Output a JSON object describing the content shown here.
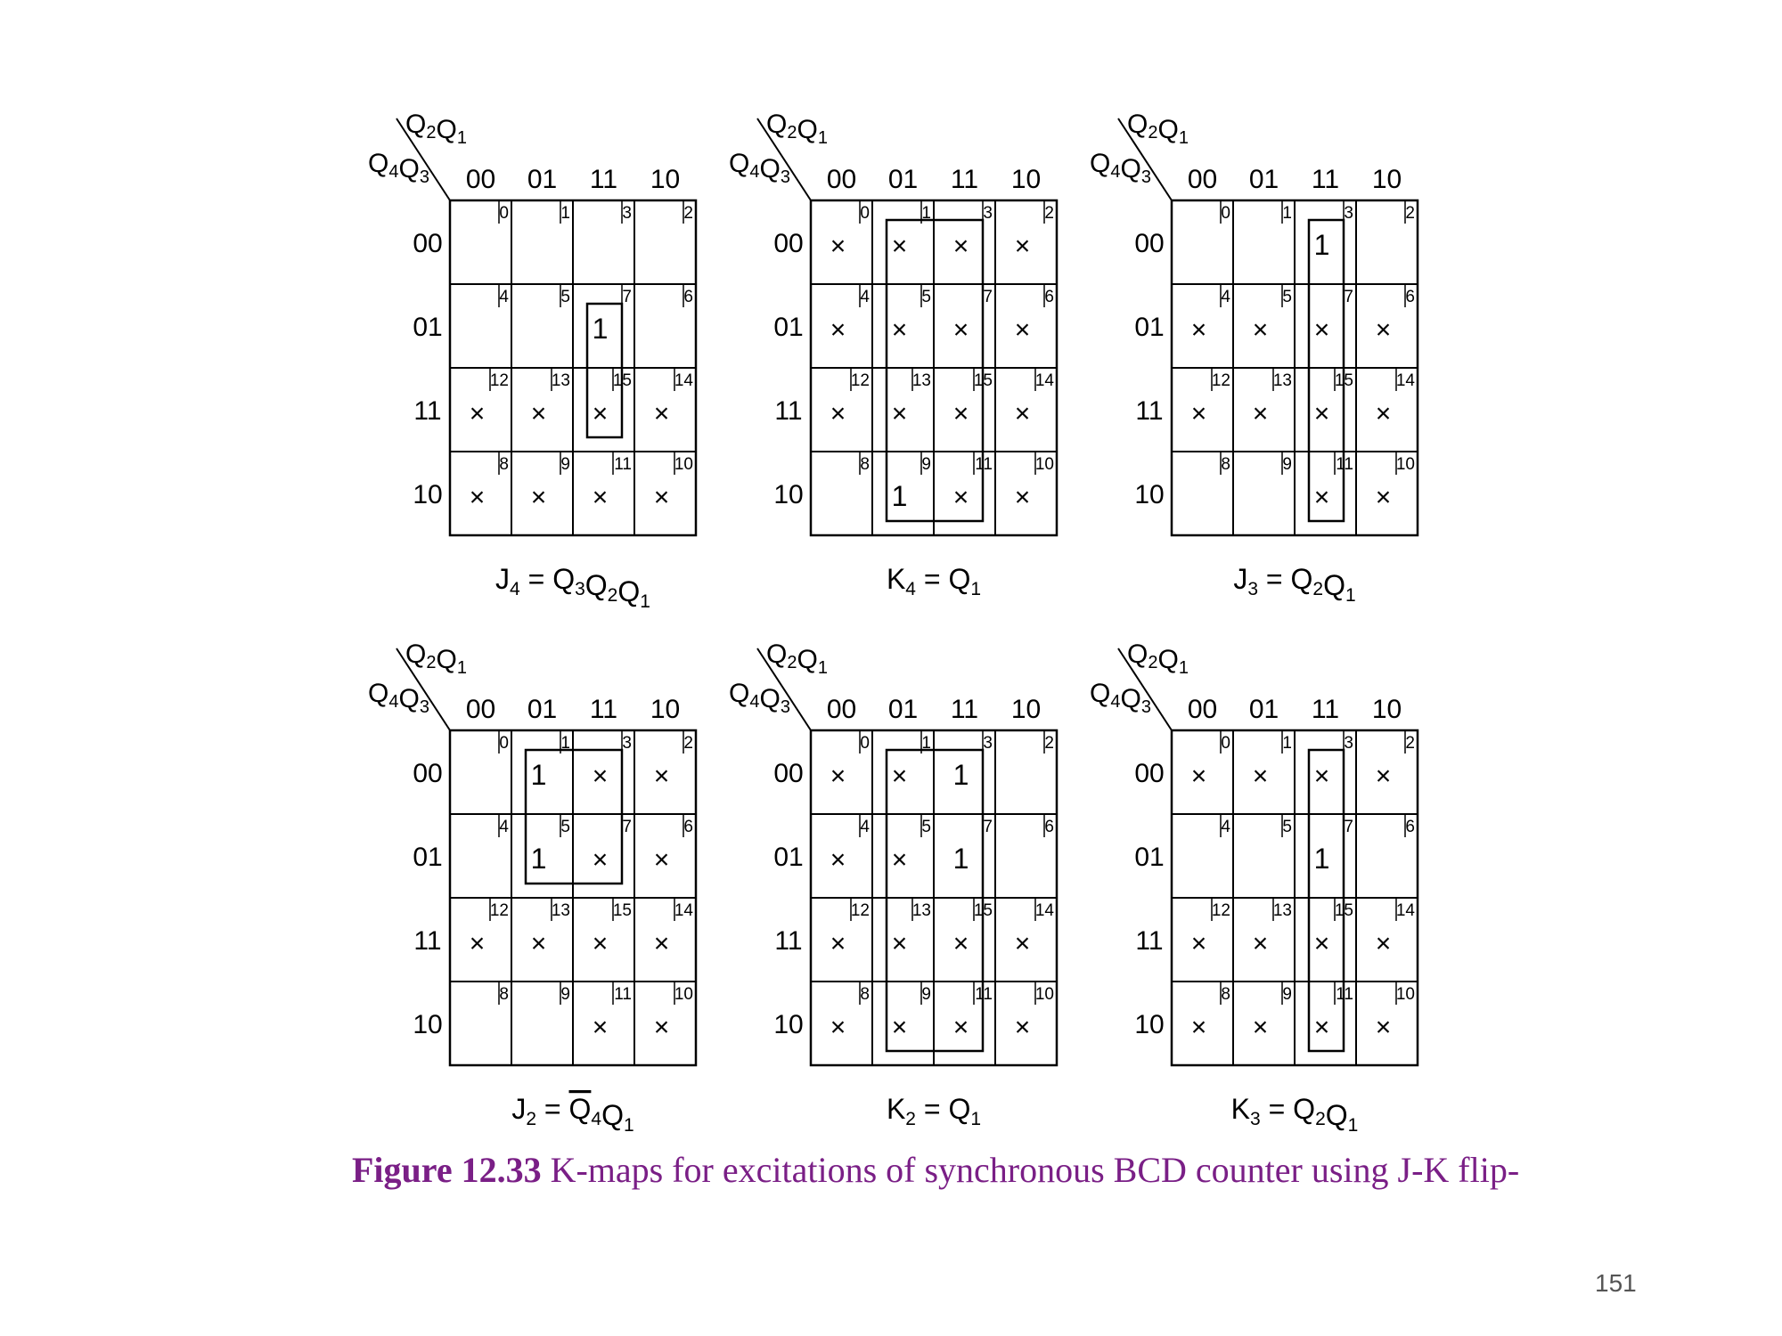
{
  "header": {
    "col_vars": "Q2Q1",
    "row_vars": "Q4Q3",
    "gray_codes": [
      "00",
      "01",
      "11",
      "10"
    ]
  },
  "maps": [
    {
      "cells": [
        [
          "",
          "",
          "",
          ""
        ],
        [
          "",
          "",
          "1",
          ""
        ],
        [
          "×",
          "×",
          "×",
          "×"
        ],
        [
          "×",
          "×",
          "×",
          "×"
        ]
      ],
      "groups": [
        {
          "rows": [
            1,
            2
          ],
          "cols": [
            2,
            2
          ]
        }
      ],
      "expr": {
        "lhs": "J",
        "lhs_sub": "4",
        "terms": [
          {
            "v": "Q",
            "sub": "3"
          },
          {
            "v": "Q",
            "sub": "2"
          },
          {
            "v": "Q",
            "sub": "1"
          }
        ]
      }
    },
    {
      "cells": [
        [
          "×",
          "×",
          "×",
          "×"
        ],
        [
          "×",
          "×",
          "×",
          "×"
        ],
        [
          "×",
          "×",
          "×",
          "×"
        ],
        [
          "",
          "1",
          "×",
          "×"
        ]
      ],
      "groups": [
        {
          "rows": [
            0,
            3
          ],
          "cols": [
            1,
            2
          ]
        }
      ],
      "expr": {
        "lhs": "K",
        "lhs_sub": "4",
        "terms": [
          {
            "v": "Q",
            "sub": "1"
          }
        ]
      }
    },
    {
      "cells": [
        [
          "",
          "",
          "1",
          ""
        ],
        [
          "×",
          "×",
          "×",
          "×"
        ],
        [
          "×",
          "×",
          "×",
          "×"
        ],
        [
          "",
          "",
          "×",
          "×"
        ]
      ],
      "groups": [
        {
          "rows": [
            0,
            3
          ],
          "cols": [
            2,
            2
          ]
        }
      ],
      "expr": {
        "lhs": "J",
        "lhs_sub": "3",
        "terms": [
          {
            "v": "Q",
            "sub": "2"
          },
          {
            "v": "Q",
            "sub": "1"
          }
        ]
      }
    },
    {
      "cells": [
        [
          "",
          "1",
          "×",
          "×"
        ],
        [
          "",
          "1",
          "×",
          "×"
        ],
        [
          "×",
          "×",
          "×",
          "×"
        ],
        [
          "",
          "",
          "×",
          "×"
        ]
      ],
      "groups": [
        {
          "rows": [
            0,
            1
          ],
          "cols": [
            1,
            2
          ]
        }
      ],
      "expr": {
        "lhs": "J",
        "lhs_sub": "2",
        "terms": [
          {
            "v": "Q",
            "sub": "4",
            "bar": true
          },
          {
            "v": "Q",
            "sub": "1"
          }
        ]
      }
    },
    {
      "cells": [
        [
          "×",
          "×",
          "1",
          ""
        ],
        [
          "×",
          "×",
          "1",
          ""
        ],
        [
          "×",
          "×",
          "×",
          "×"
        ],
        [
          "×",
          "×",
          "×",
          "×"
        ]
      ],
      "groups": [
        {
          "rows": [
            0,
            3
          ],
          "cols": [
            1,
            2
          ]
        }
      ],
      "expr": {
        "lhs": "K",
        "lhs_sub": "2",
        "terms": [
          {
            "v": "Q",
            "sub": "1"
          }
        ]
      }
    },
    {
      "cells": [
        [
          "×",
          "×",
          "×",
          "×"
        ],
        [
          "",
          "",
          "1",
          ""
        ],
        [
          "×",
          "×",
          "×",
          "×"
        ],
        [
          "×",
          "×",
          "×",
          "×"
        ]
      ],
      "groups": [
        {
          "rows": [
            0,
            3
          ],
          "cols": [
            2,
            2
          ]
        }
      ],
      "expr": {
        "lhs": "K",
        "lhs_sub": "3",
        "terms": [
          {
            "v": "Q",
            "sub": "2"
          },
          {
            "v": "Q",
            "sub": "1"
          }
        ]
      }
    }
  ],
  "caption": {
    "figure_label": "Figure 12.33",
    "text": " K-maps for excitations of synchronous BCD counter using J-K flip-"
  },
  "page_number": "151"
}
